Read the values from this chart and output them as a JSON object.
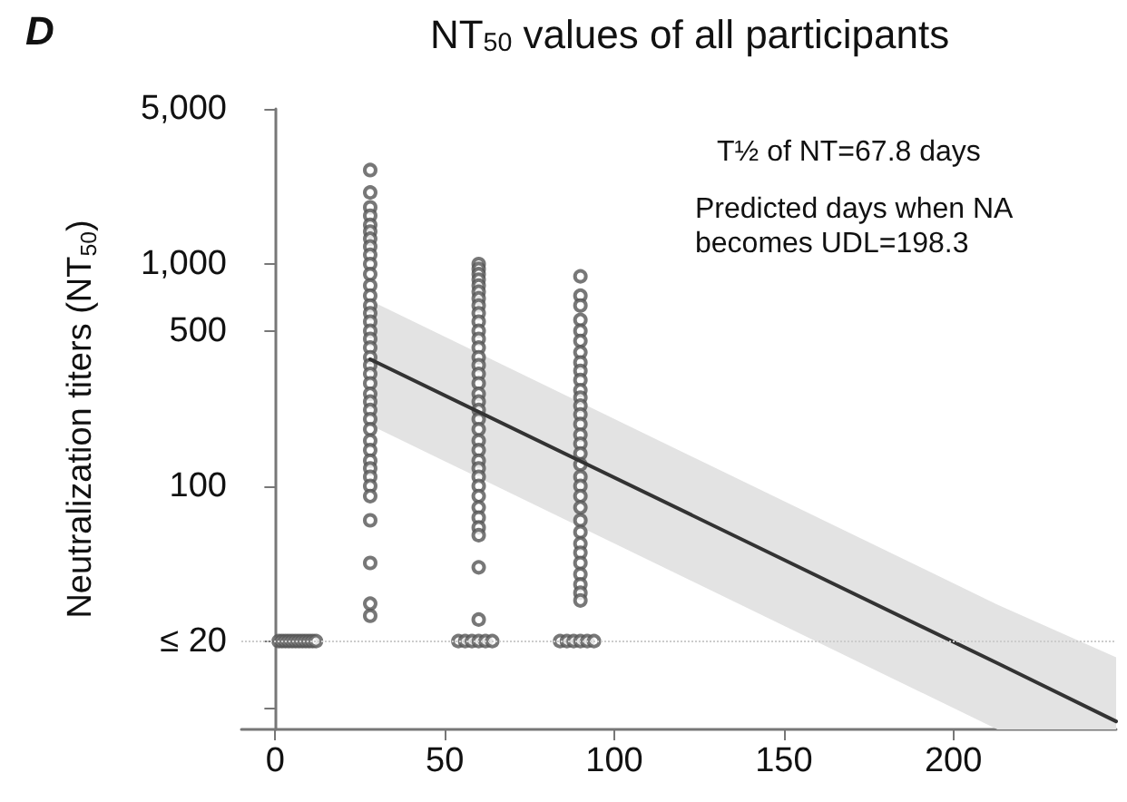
{
  "chart_data": {
    "type": "scatter",
    "title": "NT$_{50}$ values of all participants",
    "ylabel": "Neutralization titers (NT$_{50}$)",
    "annotations": [
      "D",
      "T½ of NT=67.8 days",
      "Predicted days when NA becomes UDL=198.3"
    ],
    "log": "y",
    "xlim": [
      -10,
      248
    ],
    "xticks": [
      0,
      50,
      100,
      150,
      200
    ],
    "ylim": [
      8,
      5000
    ],
    "yticks": [
      {
        "value": 10,
        "label": null
      },
      {
        "value": 20,
        "label": "≤ 20"
      },
      {
        "value": 100,
        "label": "100"
      },
      {
        "value": 500,
        "label": "500"
      },
      {
        "value": 1000,
        "label": "1,000"
      },
      {
        "value": 5000,
        "label": "5,000"
      }
    ],
    "ref_lines": [
      {
        "axis": "y",
        "value": 20,
        "color": "#cccccc",
        "line_style": "dotted"
      }
    ],
    "series": [
      {
        "color": "#555555",
        "marker": "circle",
        "x": [
          1,
          2,
          3,
          4,
          5,
          6,
          7,
          8,
          9,
          10,
          11,
          12,
          28,
          28,
          28,
          28,
          28,
          28,
          28,
          28,
          28,
          28,
          28,
          28,
          28,
          28,
          28,
          28,
          28,
          28,
          28,
          28,
          28,
          28,
          28,
          28,
          28,
          28,
          28,
          28,
          28,
          28,
          28,
          28,
          28,
          28,
          28,
          28,
          28,
          28,
          28,
          60,
          60,
          60,
          60,
          60,
          60,
          60,
          60,
          60,
          60,
          60,
          60,
          60,
          60,
          60,
          60,
          60,
          60,
          60,
          60,
          60,
          60,
          60,
          60,
          60,
          60,
          60,
          60,
          60,
          60,
          60,
          60,
          60,
          60,
          60,
          54,
          56,
          58,
          60,
          62,
          64,
          90,
          90,
          90,
          90,
          90,
          90,
          90,
          90,
          90,
          90,
          90,
          90,
          90,
          90,
          90,
          90,
          90,
          90,
          90,
          90,
          90,
          90,
          90,
          90,
          90,
          90,
          90,
          90,
          90,
          90,
          90,
          90,
          84,
          86,
          88,
          90,
          92,
          94
        ],
        "values": [
          20,
          20,
          20,
          20,
          20,
          20,
          20,
          20,
          20,
          20,
          20,
          20,
          2650,
          2100,
          1800,
          1650,
          1500,
          1400,
          1300,
          1200,
          1100,
          1000,
          900,
          800,
          720,
          650,
          600,
          550,
          500,
          460,
          420,
          380,
          350,
          320,
          290,
          260,
          240,
          220,
          200,
          180,
          160,
          145,
          130,
          120,
          110,
          100,
          90,
          70,
          45,
          29.5,
          26,
          1000,
          950,
          900,
          850,
          800,
          750,
          700,
          650,
          600,
          550,
          500,
          460,
          420,
          380,
          350,
          320,
          290,
          260,
          240,
          220,
          200,
          180,
          160,
          145,
          130,
          120,
          110,
          100,
          90,
          80,
          72,
          65,
          60,
          43,
          25,
          20,
          20,
          20,
          20,
          20,
          20,
          880,
          720,
          650,
          560,
          500,
          450,
          400,
          360,
          330,
          300,
          270,
          250,
          230,
          210,
          190,
          170,
          155,
          140,
          125,
          110,
          100,
          90,
          80,
          70,
          62,
          55,
          50,
          45,
          40,
          36,
          33,
          30.5,
          20,
          20,
          20,
          20,
          20,
          20
        ]
      },
      {
        "type": "line",
        "color": "#333333",
        "marker": "none",
        "x": [
          28,
          213,
          248
        ],
        "values": [
          372,
          15.9,
          8.7
        ],
        "lower": [
          188,
          8,
          8
        ],
        "upper": [
          684,
          29.2,
          16.9
        ]
      }
    ]
  }
}
